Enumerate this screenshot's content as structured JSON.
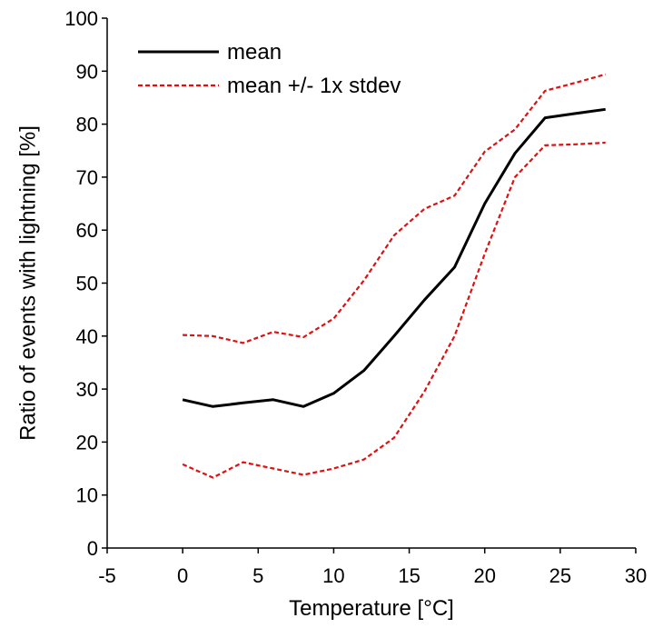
{
  "chart_data": {
    "type": "line",
    "title": "",
    "xlabel": "Temperature [°C]",
    "ylabel": "Ratio of events with lightning [%]",
    "xlim": [
      -5,
      30
    ],
    "ylim": [
      0,
      100
    ],
    "xticks": [
      -5,
      0,
      5,
      10,
      15,
      20,
      25,
      30
    ],
    "yticks": [
      0,
      10,
      20,
      30,
      40,
      50,
      60,
      70,
      80,
      90,
      100
    ],
    "grid": false,
    "legend_position": "top-left",
    "legend": [
      {
        "label": "mean",
        "color": "#000000",
        "style": "solid"
      },
      {
        "label": "mean +/- 1x stdev",
        "color": "#dd1111",
        "style": "dashed"
      }
    ],
    "series": [
      {
        "name": "mean",
        "color": "#000000",
        "style": "solid",
        "x": [
          0,
          2,
          4,
          6,
          8,
          10,
          12,
          14,
          16,
          18,
          20,
          22,
          24,
          26,
          28
        ],
        "y": [
          28.0,
          26.7,
          27.4,
          28.0,
          26.7,
          29.2,
          33.5,
          40.0,
          46.8,
          53.0,
          65.0,
          74.5,
          81.2,
          82.0,
          82.8
        ]
      },
      {
        "name": "mean + 1x stdev",
        "color": "#dd1111",
        "style": "dashed",
        "x": [
          0,
          2,
          4,
          6,
          8,
          10,
          12,
          14,
          16,
          18,
          20,
          22,
          24,
          26,
          28
        ],
        "y": [
          40.2,
          40.0,
          38.7,
          40.8,
          39.8,
          43.3,
          50.5,
          59.0,
          64.0,
          66.5,
          74.8,
          79.0,
          86.3,
          87.8,
          89.4
        ]
      },
      {
        "name": "mean - 1x stdev",
        "color": "#dd1111",
        "style": "dashed",
        "x": [
          0,
          2,
          4,
          6,
          8,
          10,
          12,
          14,
          16,
          18,
          20,
          22,
          24,
          26,
          28
        ],
        "y": [
          15.8,
          13.3,
          16.2,
          15.0,
          13.8,
          15.0,
          16.7,
          20.8,
          29.5,
          40.0,
          55.5,
          70.0,
          76.0,
          76.2,
          76.5
        ]
      }
    ]
  }
}
